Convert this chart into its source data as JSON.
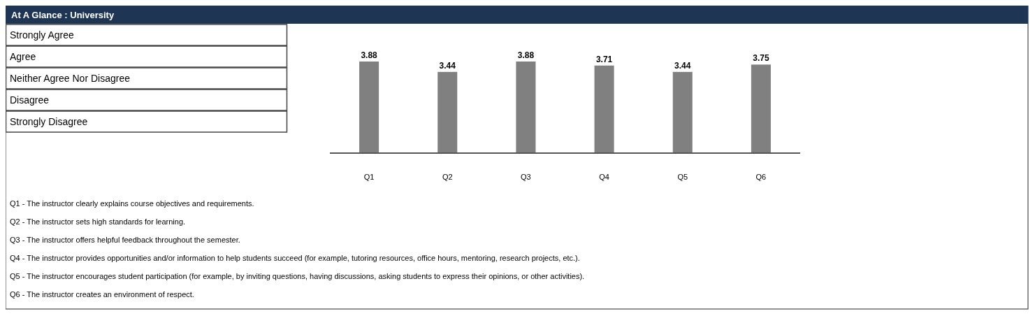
{
  "chart_data": {
    "type": "bar",
    "title": "At A Glance : University",
    "categories": [
      "Q1",
      "Q2",
      "Q3",
      "Q4",
      "Q5",
      "Q6"
    ],
    "values": [
      3.88,
      3.44,
      3.88,
      3.71,
      3.44,
      3.75
    ],
    "color": "#808080",
    "data_labels": true,
    "annotations": [
      "Strongly Agree",
      "Agree",
      "Neither Agree Nor Disagree",
      "Disagree",
      "Strongly Disagree",
      "Q1 - The instructor clearly explains course objectives and requirements.",
      "Q2 - The instructor sets high standards for learning.",
      "Q3 - The instructor offers helpful feedback throughout the semester.",
      "Q4 - The instructor provides opportunities and/or information to help students succeed (for example, tutoring resources, office hours, mentoring, research projects, etc.).",
      "Q5 - The instructor encourages student participation (for example, by inviting questions, having discussions, asking students to express their opinions, or other activities).",
      "Q6 - The instructor creates an environment of respect."
    ]
  }
}
